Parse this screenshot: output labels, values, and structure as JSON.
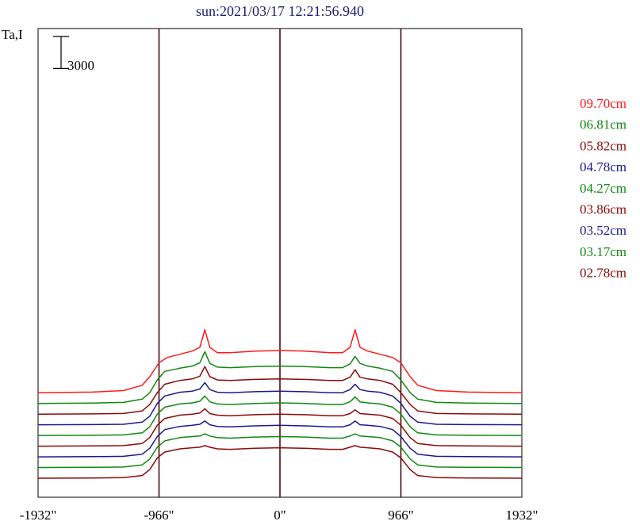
{
  "chart_data": {
    "type": "line",
    "title": "sun:2021/03/17 12:21:56.940",
    "ylabel": "Ta,I",
    "scale_bar_label": "3000",
    "scale_bar_value": 3000,
    "x_tick_labels": [
      "-1932\"",
      "-966\"",
      "0\"",
      "966\"",
      "1932\""
    ],
    "x_ticks": [
      -1932,
      -966,
      0,
      966,
      1932
    ],
    "xlim": [
      -1932,
      1932
    ],
    "vertical_lines_at": [
      -966,
      0,
      966
    ],
    "series": [
      {
        "name": "09.70cm",
        "color": "#ff1a1a",
        "offset": 8000,
        "x": [
          -1932,
          -1500,
          -1250,
          -1100,
          -1040,
          -966,
          -900,
          -800,
          -700,
          -640,
          -600,
          -560,
          -500,
          -400,
          -200,
          0,
          200,
          400,
          500,
          560,
          600,
          640,
          700,
          800,
          900,
          966,
          1040,
          1100,
          1250,
          1500,
          1932
        ],
        "y": [
          0,
          60,
          200,
          700,
          1500,
          2800,
          3300,
          3600,
          3900,
          4250,
          5900,
          4250,
          3750,
          3750,
          3900,
          3950,
          3900,
          3750,
          3750,
          4250,
          5900,
          4250,
          3900,
          3600,
          3300,
          2800,
          1500,
          700,
          200,
          60,
          0
        ]
      },
      {
        "name": "06.81cm",
        "color": "#118811",
        "offset": 7000,
        "x": [
          -1932,
          -1500,
          -1250,
          -1100,
          -1040,
          -980,
          -920,
          -800,
          -700,
          -640,
          -600,
          -560,
          -500,
          -400,
          -200,
          0,
          200,
          400,
          500,
          560,
          600,
          640,
          700,
          800,
          900,
          966,
          1040,
          1100,
          1250,
          1500,
          1932
        ],
        "y": [
          0,
          30,
          100,
          400,
          1000,
          2200,
          3000,
          3300,
          3500,
          3800,
          4850,
          3750,
          3400,
          3350,
          3450,
          3500,
          3450,
          3350,
          3350,
          3700,
          4400,
          3750,
          3500,
          3300,
          3000,
          2200,
          1000,
          400,
          100,
          30,
          0
        ]
      },
      {
        "name": "05.82cm",
        "color": "#8b0a0a",
        "offset": 6000,
        "x": [
          -1932,
          -1500,
          -1250,
          -1100,
          -1040,
          -980,
          -920,
          -800,
          -700,
          -640,
          -600,
          -560,
          -500,
          -400,
          -200,
          0,
          200,
          400,
          500,
          560,
          600,
          640,
          700,
          800,
          900,
          966,
          1040,
          1100,
          1250,
          1500,
          1932
        ],
        "y": [
          0,
          20,
          60,
          300,
          900,
          2000,
          2800,
          3150,
          3300,
          3550,
          4450,
          3500,
          3200,
          3150,
          3250,
          3300,
          3250,
          3150,
          3150,
          3450,
          4150,
          3450,
          3300,
          3150,
          2800,
          2000,
          900,
          300,
          60,
          20,
          0
        ]
      },
      {
        "name": "04.78cm",
        "color": "#1a1a8c",
        "offset": 5000,
        "x": [
          -1932,
          -1500,
          -1250,
          -1100,
          -1040,
          -980,
          -920,
          -800,
          -700,
          -640,
          -600,
          -560,
          -500,
          -400,
          -200,
          0,
          200,
          400,
          500,
          560,
          600,
          640,
          700,
          800,
          900,
          966,
          1040,
          1100,
          1250,
          1500,
          1932
        ],
        "y": [
          0,
          20,
          50,
          250,
          800,
          2000,
          2700,
          3050,
          3150,
          3350,
          3950,
          3300,
          3050,
          3000,
          3100,
          3150,
          3100,
          3000,
          3000,
          3300,
          3800,
          3300,
          3150,
          3050,
          2700,
          2000,
          800,
          250,
          50,
          20,
          0
        ]
      },
      {
        "name": "04.27cm",
        "color": "#118811",
        "offset": 4000,
        "x": [
          -1932,
          -1500,
          -1250,
          -1100,
          -1040,
          -980,
          -920,
          -800,
          -700,
          -640,
          -600,
          -560,
          -500,
          -400,
          -200,
          0,
          200,
          400,
          500,
          560,
          600,
          640,
          700,
          800,
          900,
          966,
          1040,
          1100,
          1250,
          1500,
          1932
        ],
        "y": [
          0,
          20,
          50,
          250,
          800,
          2000,
          2650,
          2950,
          3050,
          3200,
          3700,
          3150,
          2950,
          2900,
          3000,
          3050,
          3000,
          2900,
          2900,
          3150,
          3600,
          3150,
          3050,
          2950,
          2650,
          2000,
          800,
          250,
          50,
          20,
          0
        ]
      },
      {
        "name": "03.86cm",
        "color": "#8b0a0a",
        "offset": 3000,
        "x": [
          -1932,
          -1500,
          -1250,
          -1100,
          -1040,
          -980,
          -920,
          -800,
          -700,
          -640,
          -600,
          -560,
          -500,
          -400,
          -200,
          0,
          200,
          400,
          500,
          560,
          600,
          640,
          700,
          800,
          900,
          966,
          1040,
          1100,
          1250,
          1500,
          1932
        ],
        "y": [
          0,
          20,
          50,
          250,
          800,
          1950,
          2600,
          2900,
          3000,
          3100,
          3500,
          3050,
          2900,
          2850,
          2950,
          3000,
          2950,
          2850,
          2850,
          3050,
          3400,
          3050,
          3000,
          2900,
          2600,
          1950,
          800,
          250,
          50,
          20,
          0
        ]
      },
      {
        "name": "03.52cm",
        "color": "#1a1a8c",
        "offset": 2000,
        "x": [
          -1932,
          -1500,
          -1250,
          -1100,
          -1040,
          -980,
          -920,
          -800,
          -700,
          -640,
          -600,
          -560,
          -500,
          -400,
          -200,
          0,
          200,
          400,
          500,
          560,
          600,
          640,
          700,
          800,
          900,
          966,
          1040,
          1100,
          1250,
          1500,
          1932
        ],
        "y": [
          0,
          20,
          50,
          250,
          800,
          1900,
          2550,
          2850,
          2950,
          3050,
          3350,
          3000,
          2850,
          2800,
          2900,
          2950,
          2900,
          2800,
          2800,
          3000,
          3350,
          3000,
          2950,
          2850,
          2550,
          1900,
          800,
          250,
          50,
          20,
          0
        ]
      },
      {
        "name": "03.17cm",
        "color": "#118811",
        "offset": 1000,
        "x": [
          -1932,
          -1500,
          -1250,
          -1100,
          -1040,
          -980,
          -920,
          -800,
          -700,
          -640,
          -600,
          -560,
          -500,
          -400,
          -200,
          0,
          200,
          400,
          500,
          560,
          600,
          640,
          700,
          800,
          900,
          966,
          1040,
          1100,
          1250,
          1500,
          1932
        ],
        "y": [
          0,
          20,
          50,
          250,
          800,
          1900,
          2500,
          2800,
          2900,
          2950,
          3150,
          2950,
          2800,
          2750,
          2850,
          2900,
          2850,
          2750,
          2750,
          2950,
          3150,
          2950,
          2900,
          2800,
          2500,
          1900,
          800,
          250,
          50,
          20,
          0
        ]
      },
      {
        "name": "02.78cm",
        "color": "#8b0a0a",
        "offset": 0,
        "x": [
          -1932,
          -1500,
          -1250,
          -1100,
          -1040,
          -980,
          -920,
          -800,
          -700,
          -640,
          -600,
          -560,
          -500,
          -400,
          -200,
          0,
          200,
          400,
          500,
          560,
          600,
          640,
          700,
          800,
          900,
          966,
          1040,
          1100,
          1250,
          1500,
          1932
        ],
        "y": [
          0,
          20,
          50,
          250,
          800,
          1900,
          2450,
          2750,
          2850,
          2900,
          3050,
          2900,
          2750,
          2700,
          2800,
          2850,
          2800,
          2700,
          2700,
          2900,
          3050,
          2900,
          2850,
          2750,
          2450,
          1900,
          800,
          250,
          50,
          20,
          0
        ]
      }
    ]
  }
}
